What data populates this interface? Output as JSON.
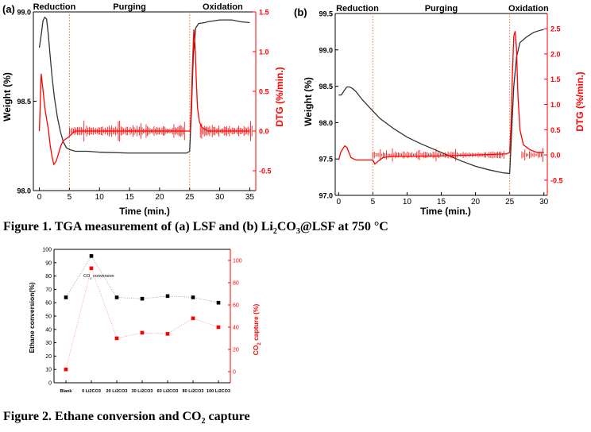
{
  "figure1": {
    "caption_parts": [
      "Figure 1. TGA measurement of (a) LSF and (b) Li",
      "2",
      "CO",
      "3",
      "@LSF at 750 °C"
    ]
  },
  "figure2": {
    "caption_parts": [
      "Figure 2. Ethane conversion and CO",
      "2",
      " capture"
    ]
  },
  "colors": {
    "weight": "#333333",
    "dtg": "#ff0000",
    "black_series": "#000000",
    "red_series": "#ff0000"
  },
  "chart_data": [
    {
      "id": "tga-a",
      "type": "line",
      "panel_label": "(a)",
      "xlabel": "Time (min.)",
      "ylabel": "Weight (%)",
      "y2label": "DTG (%/min.)",
      "xlim": [
        -1,
        36
      ],
      "ylim": [
        98.0,
        99.0
      ],
      "y2lim": [
        -0.75,
        1.5
      ],
      "xticks": [
        0,
        5,
        10,
        15,
        20,
        25,
        30,
        35
      ],
      "yticks": [
        98.0,
        98.5,
        99.0
      ],
      "ytick_labels": [
        "98.0",
        "98.5",
        "99.0"
      ],
      "y2ticks": [
        -0.5,
        0.0,
        0.5,
        1.0,
        1.5
      ],
      "y2tick_labels": [
        "-0.5",
        "0.0",
        "0.5",
        "1.0",
        "1.5"
      ],
      "phases": [
        "Reduction",
        "Purging",
        "Oxidation"
      ],
      "phase_boundaries": [
        5,
        25
      ],
      "series": [
        {
          "axis": "left",
          "x": [
            0,
            0.3,
            0.6,
            0.9,
            1.2,
            1.5,
            1.8,
            2.1,
            2.5,
            3.0,
            3.5,
            4.0,
            4.5,
            5.0,
            6.0,
            8,
            10,
            15,
            20,
            24.5,
            25.0,
            25.3,
            25.6,
            26.0,
            26.5,
            27.5,
            28,
            30,
            32,
            33.5,
            35
          ],
          "y": [
            98.8,
            98.87,
            98.95,
            98.97,
            98.96,
            98.87,
            98.75,
            98.64,
            98.52,
            98.41,
            98.33,
            98.27,
            98.24,
            98.23,
            98.22,
            98.22,
            98.215,
            98.21,
            98.21,
            98.21,
            98.22,
            98.45,
            98.75,
            98.91,
            98.935,
            98.94,
            98.945,
            98.955,
            98.955,
            98.945,
            98.94
          ]
        },
        {
          "axis": "right",
          "x": [
            0,
            0.3,
            0.6,
            0.9,
            1.2,
            1.5,
            1.8,
            2.1,
            2.4,
            2.8,
            3.2,
            3.6,
            4.0,
            4.4,
            4.8,
            5.2,
            5.6,
            6,
            10,
            15,
            20,
            24.5,
            24.8,
            25.1,
            25.3,
            25.5,
            25.7,
            25.9,
            26.1,
            26.3,
            26.6,
            27,
            28,
            30,
            35
          ],
          "y": [
            0.0,
            0.72,
            0.52,
            0.3,
            0.15,
            0.02,
            -0.18,
            -0.32,
            -0.42,
            -0.38,
            -0.28,
            -0.18,
            -0.12,
            -0.1,
            -0.08,
            -0.05,
            -0.02,
            0.0,
            0.0,
            0.0,
            0.0,
            0.0,
            0.0,
            0.0,
            0.4,
            0.9,
            1.28,
            1.08,
            0.65,
            0.3,
            0.12,
            0.05,
            0.0,
            0.0,
            0.0
          ]
        }
      ]
    },
    {
      "id": "tga-b",
      "type": "line",
      "panel_label": "(b)",
      "xlabel": "Time (min.)",
      "ylabel": "Weight (%)",
      "y2label": "DTG (%/min.)",
      "xlim": [
        -0.5,
        30.5
      ],
      "ylim": [
        97.0,
        99.5
      ],
      "y2lim": [
        -0.8,
        2.8
      ],
      "xticks": [
        0,
        5,
        10,
        15,
        20,
        25,
        30
      ],
      "yticks": [
        97.0,
        97.5,
        98.0,
        98.5,
        99.0,
        99.5
      ],
      "ytick_labels": [
        "97.0",
        "97.5",
        "98.0",
        "98.5",
        "99.0",
        "99.5"
      ],
      "y2ticks": [
        -0.5,
        0.0,
        0.5,
        1.0,
        1.5,
        2.0,
        2.5
      ],
      "y2tick_labels": [
        "-0.5",
        "0.0",
        "0.5",
        "1.0",
        "1.5",
        "2.0",
        "2.5"
      ],
      "phases": [
        "Reduction",
        "Purging",
        "Oxidation"
      ],
      "phase_boundaries": [
        5,
        25
      ],
      "series": [
        {
          "axis": "left",
          "x": [
            0,
            0.4,
            0.8,
            1.2,
            1.6,
            2.0,
            2.5,
            3.0,
            3.5,
            4.0,
            4.5,
            5.0,
            6,
            8,
            10,
            12,
            14,
            16,
            18,
            20,
            22,
            24,
            25.0,
            25.3,
            25.6,
            26.0,
            26.5,
            27.5,
            28.5,
            29.5,
            30
          ],
          "y": [
            98.38,
            98.38,
            98.44,
            98.49,
            98.49,
            98.47,
            98.43,
            98.37,
            98.31,
            98.26,
            98.21,
            98.16,
            98.06,
            97.92,
            97.8,
            97.71,
            97.63,
            97.55,
            97.47,
            97.4,
            97.35,
            97.31,
            97.3,
            97.9,
            98.5,
            98.9,
            99.1,
            99.18,
            99.24,
            99.27,
            99.28
          ]
        },
        {
          "axis": "right",
          "x": [
            0,
            0.3,
            0.6,
            0.9,
            1.2,
            1.5,
            1.8,
            2.2,
            2.6,
            3.0,
            4.0,
            5.0,
            5.3,
            5.8,
            6.5,
            8,
            10,
            15,
            20,
            24.5,
            25.0,
            25.2,
            25.4,
            25.6,
            25.8,
            26.0,
            26.2,
            26.5,
            27,
            28,
            29,
            30
          ],
          "y": [
            -0.1,
            0.05,
            0.12,
            0.18,
            0.15,
            0.05,
            -0.05,
            -0.08,
            -0.1,
            -0.1,
            -0.1,
            -0.1,
            -0.18,
            -0.12,
            -0.05,
            -0.03,
            -0.03,
            -0.02,
            0.0,
            0.02,
            0.05,
            0.6,
            1.6,
            2.35,
            2.45,
            2.1,
            1.2,
            0.5,
            0.2,
            0.1,
            0.05,
            0.05
          ]
        }
      ]
    },
    {
      "id": "ethane",
      "type": "scatter",
      "categories": [
        "Blank",
        "0 Li2CO3",
        "20 Li2CO3",
        "30 Li2CO3",
        "60 Li2CO3",
        "80 Li2CO3",
        "100 Li2CO3"
      ],
      "ylabel": "Ethane conversion(%)",
      "y2label_parts": [
        "CO",
        "2",
        " capture (%)"
      ],
      "ylim": [
        0,
        100
      ],
      "y2lim": [
        -10,
        110
      ],
      "yticks": [
        0,
        10,
        20,
        30,
        40,
        50,
        60,
        70,
        80,
        90,
        100
      ],
      "y2ticks": [
        0,
        20,
        40,
        60,
        80,
        100
      ],
      "annotation_parts": [
        "CO",
        "2",
        " conversion"
      ],
      "series": [
        {
          "axis": "left",
          "values": [
            64,
            95,
            64,
            63,
            65,
            64,
            60
          ]
        },
        {
          "axis": "right",
          "values": [
            2,
            93,
            30,
            35,
            34,
            48,
            40
          ]
        }
      ]
    }
  ]
}
